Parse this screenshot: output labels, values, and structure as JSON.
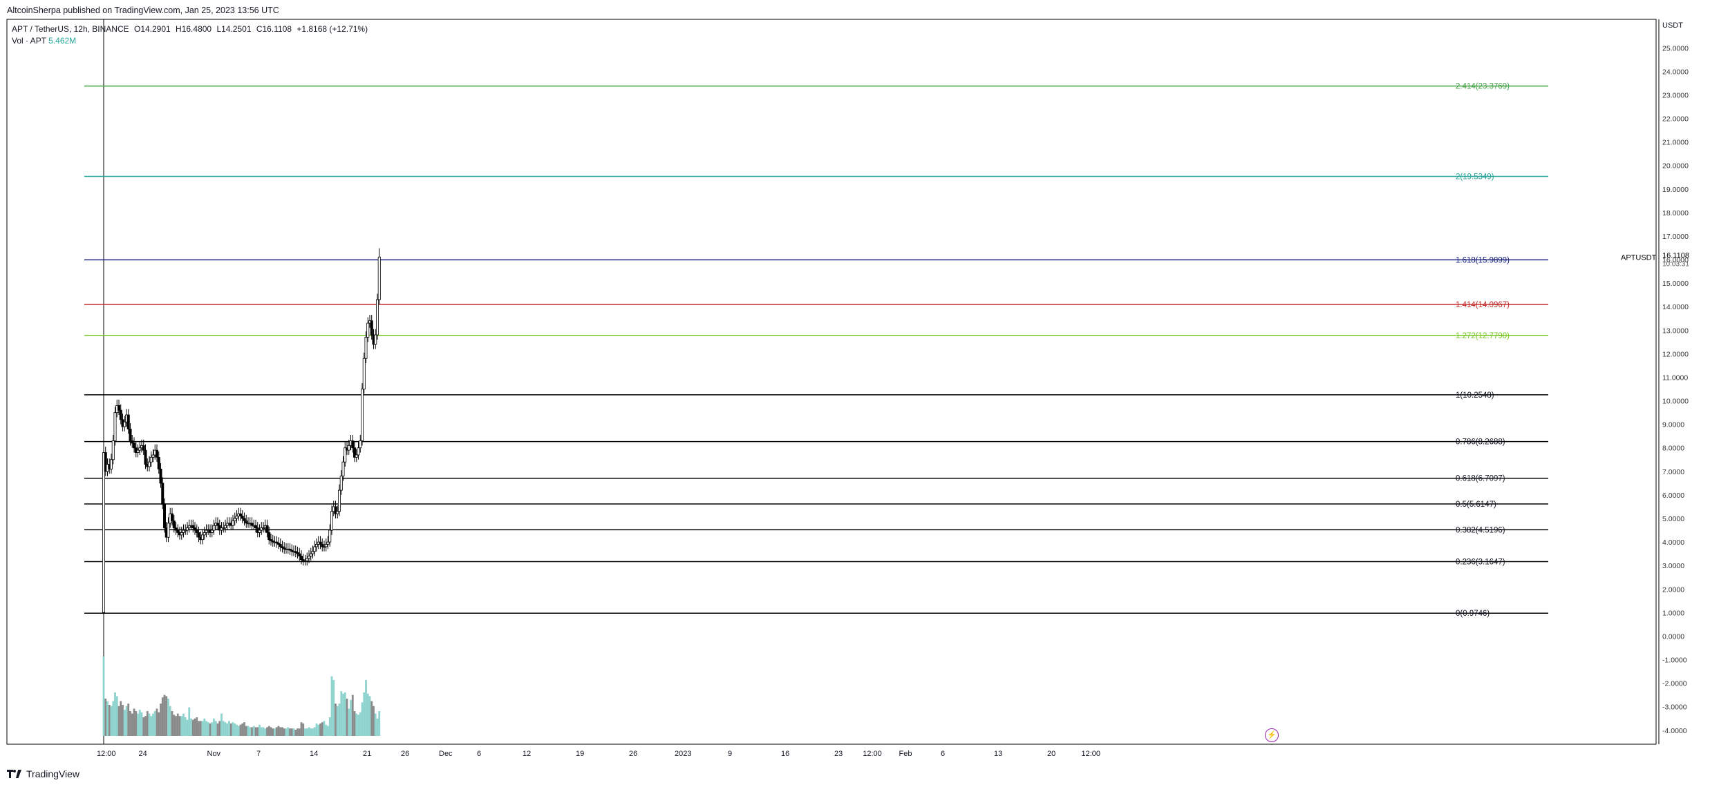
{
  "header": {
    "published": "AltcoinSherpa published on TradingView.com, Jan 25, 2023 13:56 UTC",
    "symbol": "APT / TetherUS, 12h, BINANCE",
    "open": "O14.2901",
    "high": "H16.4800",
    "low": "L14.2501",
    "close": "C16.1108",
    "change": "+1.8168 (+12.71%)",
    "vol_label": "Vol · APT",
    "vol_value": "5.462M"
  },
  "footer": {
    "brand": "TradingView"
  },
  "price_tag": {
    "symbol": "APTUSDT",
    "price": "16.1108",
    "countdown": "10:03:31"
  },
  "colors": {
    "up_body": "#ffffff",
    "down_body": "#000000",
    "vol_up": "#8fd3ce",
    "vol_down": "#8a8a8a",
    "accent": "#9c27b0"
  },
  "chart_data": {
    "type": "candlestick",
    "timeframe": "12h",
    "currency_label": "USDT",
    "y_range": [
      -4.3,
      25.8
    ],
    "y_ticks": [
      "25.0000",
      "24.0000",
      "23.0000",
      "22.0000",
      "21.0000",
      "20.0000",
      "19.0000",
      "18.0000",
      "17.0000",
      "16.0000",
      "15.0000",
      "14.0000",
      "13.0000",
      "12.0000",
      "11.0000",
      "10.0000",
      "9.0000",
      "8.0000",
      "7.0000",
      "6.0000",
      "5.0000",
      "4.0000",
      "3.0000",
      "2.0000",
      "1.0000",
      "0.0000",
      "-1.0000",
      "-2.0000",
      "-3.0000",
      "-4.0000"
    ],
    "x_ticks": [
      {
        "label": "12:00",
        "bar": 0
      },
      {
        "label": "24",
        "bar": 22
      },
      {
        "label": "Nov",
        "bar": 58
      },
      {
        "label": "7",
        "bar": 84
      },
      {
        "label": "14",
        "bar": 112
      },
      {
        "label": "21",
        "bar": 140
      },
      {
        "label": "26",
        "bar": 160
      },
      {
        "label": "Dec",
        "bar": 180
      },
      {
        "label": "6",
        "bar": 200
      },
      {
        "label": "12",
        "bar": 224
      },
      {
        "label": "19",
        "bar": 252
      },
      {
        "label": "26",
        "bar": 280
      },
      {
        "label": "2023",
        "bar": 304
      },
      {
        "label": "9",
        "bar": 332
      },
      {
        "label": "16",
        "bar": 360
      },
      {
        "label": "23",
        "bar": 388
      },
      {
        "label": "12:00",
        "bar": 403
      },
      {
        "label": "Feb",
        "bar": 422
      },
      {
        "label": "6",
        "bar": 444
      },
      {
        "label": "13",
        "bar": 472
      },
      {
        "label": "20",
        "bar": 500
      },
      {
        "label": "12:00",
        "bar": 518
      }
    ],
    "fib_levels": [
      {
        "ratio": "0",
        "price": 0.9746,
        "label": "0(0.9746)",
        "color": "#000000"
      },
      {
        "ratio": "0.236",
        "price": 3.1647,
        "label": "0.236(3.1647)",
        "color": "#000000"
      },
      {
        "ratio": "0.382",
        "price": 4.5196,
        "label": "0.382(4.5196)",
        "color": "#000000"
      },
      {
        "ratio": "0.5",
        "price": 5.6147,
        "label": "0.5(5.6147)",
        "color": "#000000"
      },
      {
        "ratio": "0.618",
        "price": 6.7097,
        "label": "0.618(6.7097)",
        "color": "#000000"
      },
      {
        "ratio": "0.786",
        "price": 8.2688,
        "label": "0.786(8.2688)",
        "color": "#000000"
      },
      {
        "ratio": "1",
        "price": 10.2548,
        "label": "1(10.2548)",
        "color": "#000000"
      },
      {
        "ratio": "1.272",
        "price": 12.779,
        "label": "1.272(12.7790)",
        "color": "#76c520"
      },
      {
        "ratio": "1.414",
        "price": 14.0967,
        "label": "1.414(14.0967)",
        "color": "#c62828"
      },
      {
        "ratio": "1.618",
        "price": 15.9899,
        "label": "1.618(15.9899)",
        "color": "#1a237e"
      },
      {
        "ratio": "2",
        "price": 19.5349,
        "label": "2(19.5349)",
        "color": "#26a69a"
      },
      {
        "ratio": "2.414",
        "price": 23.3769,
        "label": "2.414(23.3769)",
        "color": "#43a047"
      }
    ],
    "closes": [
      7.8,
      7.0,
      7.3,
      7.1,
      7.5,
      8.3,
      9.5,
      9.8,
      9.6,
      9.2,
      8.9,
      9.1,
      9.4,
      8.8,
      8.3,
      8.2,
      8.0,
      7.8,
      7.9,
      8.0,
      8.1,
      7.9,
      7.3,
      7.2,
      7.4,
      7.6,
      7.7,
      7.9,
      7.6,
      7.1,
      6.5,
      5.6,
      4.6,
      4.2,
      4.8,
      5.2,
      4.9,
      4.6,
      4.5,
      4.4,
      4.3,
      4.4,
      4.5,
      4.5,
      4.6,
      4.7,
      4.7,
      4.6,
      4.5,
      4.4,
      4.2,
      4.1,
      4.3,
      4.4,
      4.5,
      4.5,
      4.4,
      4.5,
      4.7,
      4.8,
      4.7,
      4.5,
      4.6,
      4.6,
      4.7,
      4.8,
      4.8,
      4.7,
      4.9,
      5.0,
      5.1,
      5.2,
      5.1,
      5.0,
      4.9,
      4.8,
      4.8,
      4.8,
      4.7,
      4.7,
      4.6,
      4.4,
      4.5,
      4.6,
      4.6,
      4.7,
      4.4,
      4.1,
      4.05,
      4.0,
      4.0,
      3.95,
      3.9,
      3.8,
      3.75,
      3.7,
      3.7,
      3.7,
      3.65,
      3.6,
      3.6,
      3.55,
      3.5,
      3.4,
      3.25,
      3.2,
      3.2,
      3.3,
      3.4,
      3.5,
      3.6,
      3.8,
      3.9,
      4.0,
      3.9,
      3.8,
      3.8,
      3.9,
      4.0,
      4.5,
      5.3,
      5.5,
      5.2,
      5.3,
      6.2,
      6.8,
      7.4,
      8.0,
      7.9,
      8.1,
      8.3,
      8.0,
      7.6,
      7.7,
      8.0,
      8.3,
      10.5,
      11.8,
      12.7,
      13.3,
      13.4,
      12.8,
      12.4,
      12.8,
      14.3,
      16.1108
    ],
    "volumes": [
      6.4,
      3.0,
      2.8,
      2.5,
      2.4,
      2.8,
      3.5,
      3.2,
      2.4,
      2.8,
      2.5,
      2.1,
      2.4,
      2.6,
      2.0,
      1.8,
      2.2,
      2.0,
      1.8,
      2.1,
      1.9,
      1.5,
      1.6,
      2.0,
      1.8,
      1.6,
      1.8,
      2.0,
      2.2,
      1.9,
      2.6,
      3.1,
      3.3,
      3.2,
      3.0,
      2.4,
      2.0,
      1.7,
      1.6,
      1.8,
      1.6,
      1.6,
      1.8,
      1.5,
      1.3,
      2.3,
      1.4,
      1.3,
      1.4,
      1.5,
      1.2,
      1.2,
      1.2,
      1.4,
      1.2,
      1.1,
      1.0,
      1.1,
      1.4,
      1.2,
      1.0,
      1.2,
      1.8,
      1.2,
      1.1,
      1.0,
      1.2,
      1.0,
      1.1,
      1.0,
      0.9,
      0.8,
      0.9,
      1.0,
      1.1,
      0.8,
      0.8,
      0.7,
      0.7,
      0.8,
      0.7,
      0.7,
      0.9,
      0.7,
      0.7,
      0.6,
      0.7,
      0.8,
      0.7,
      0.6,
      0.6,
      0.7,
      0.8,
      0.7,
      0.7,
      0.6,
      0.6,
      0.7,
      0.6,
      0.6,
      0.6,
      0.5,
      0.6,
      0.6,
      1.1,
      1.0,
      0.6,
      0.6,
      0.7,
      0.6,
      0.6,
      0.7,
      1.0,
      0.9,
      1.0,
      1.1,
      1.2,
      0.9,
      0.8,
      1.5,
      4.8,
      4.5,
      2.6,
      2.4,
      2.6,
      3.6,
      3.4,
      3.5,
      3.0,
      2.2,
      2.9,
      3.3,
      2.0,
      1.8,
      1.7,
      1.9,
      2.7,
      3.5,
      4.5,
      3.4,
      3.2,
      2.8,
      2.4,
      1.8,
      1.4,
      2.0
    ],
    "series": [
      {
        "name": "Vol · APT"
      }
    ]
  }
}
